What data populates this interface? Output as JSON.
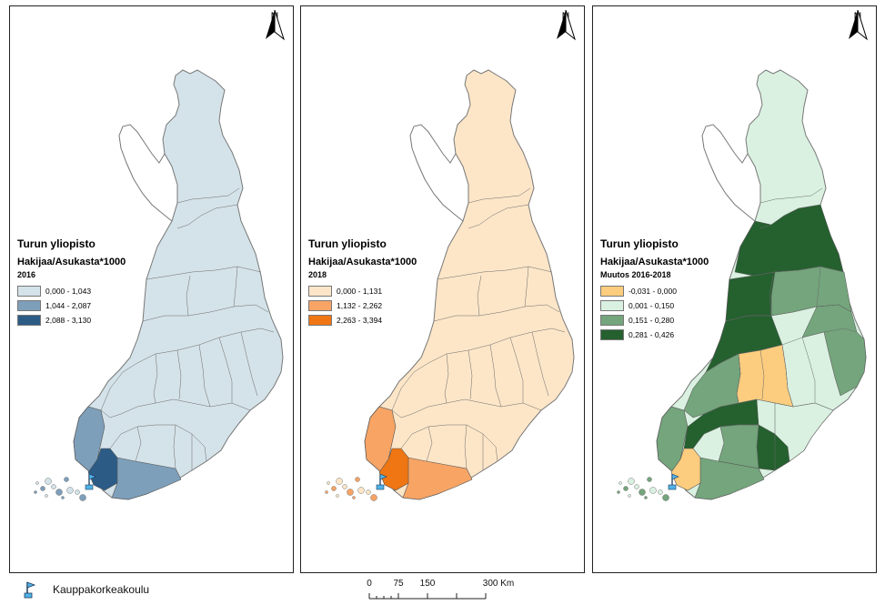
{
  "panels": [
    {
      "id": "panel-1",
      "legend_title": "Turun yliopisto",
      "legend_subtitle": "Hakijaa/Asukasta*1000",
      "legend_year": "2016",
      "classes": [
        {
          "label": "0,000 - 1,043",
          "color": "#d4e3e9"
        },
        {
          "label": "1,044 - 2,087",
          "color": "#7e9fba"
        },
        {
          "label": "2,088 - 3,130",
          "color": "#2c5c86"
        }
      ],
      "country_color": "#d4e3e9",
      "region_colors": {
        "southwest": "#7e9fba",
        "turku": "#2c5c86",
        "south": "#7e9fba"
      }
    },
    {
      "id": "panel-2",
      "legend_title": "Turun yliopisto",
      "legend_subtitle": "Hakijaa/Asukasta*1000",
      "legend_year": "2018",
      "classes": [
        {
          "label": "0,000 - 1,131",
          "color": "#fde6c8"
        },
        {
          "label": "1,132 - 2,262",
          "color": "#f7a465"
        },
        {
          "label": "2,263 - 3,394",
          "color": "#ef7613"
        }
      ],
      "country_color": "#fde6c8",
      "region_colors": {
        "southwest": "#f7a465",
        "turku": "#ef7613",
        "south": "#f7a465"
      }
    },
    {
      "id": "panel-3",
      "legend_title": "Turun yliopisto",
      "legend_subtitle": "Hakijaa/Asukasta*1000",
      "legend_year": "Muutos 2016-2018",
      "classes": [
        {
          "label": "-0,031 - 0,000",
          "color": "#fccd7e"
        },
        {
          "label": "0,001 - 0,150",
          "color": "#daf1e1"
        },
        {
          "label": "0,151 - 0,280",
          "color": "#74a57c"
        },
        {
          "label": "0,281 - 0,426",
          "color": "#25602f"
        }
      ],
      "country_color": "#daf1e1",
      "region_colors": {
        "southwest": "#74a57c",
        "turku": "#fccd7e",
        "south": "#74a57c"
      }
    }
  ],
  "north_arrow": {
    "letter": "N"
  },
  "bottom_legend": {
    "label": "Kauppakorkeakoulu",
    "icon": "flag-icon"
  },
  "scale_bar": {
    "ticks": [
      "0",
      "75",
      "150",
      "300 Km"
    ]
  }
}
